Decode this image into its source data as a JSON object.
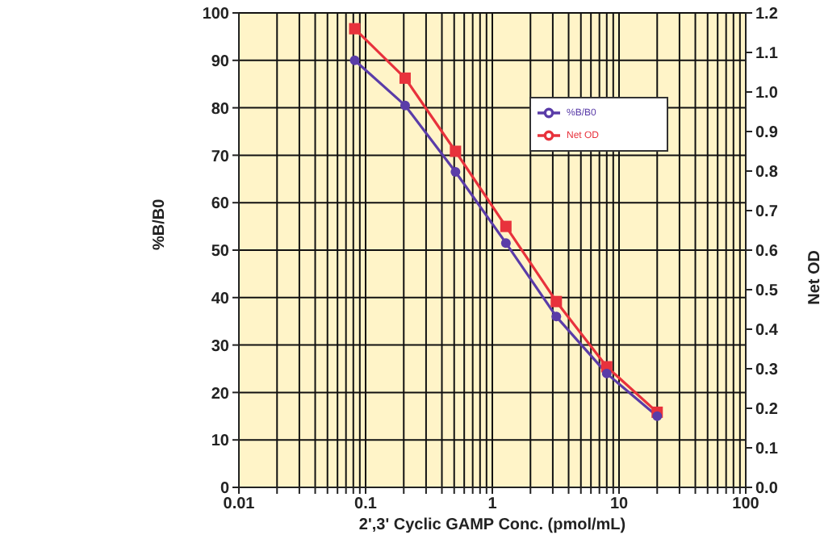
{
  "chart_data": {
    "type": "line",
    "xlabel": "2',3' Cyclic GAMP Conc. (pmol/mL)",
    "ylabel": "%B/B0",
    "y2label": "Net OD",
    "x": [
      0.082,
      0.205,
      0.512,
      1.28,
      3.2,
      8,
      20
    ],
    "series": [
      {
        "name": "%B/B0",
        "color": "#5a3ca8",
        "marker": "circle",
        "values": [
          90,
          80.5,
          66.5,
          51.5,
          36,
          24,
          15
        ]
      },
      {
        "name": "Net OD",
        "color": "#e8323c",
        "marker": "square",
        "axis": "y2",
        "values": [
          1.16,
          1.035,
          0.85,
          0.66,
          0.47,
          0.305,
          0.19
        ]
      }
    ],
    "log": "x",
    "grid": true,
    "legend": "top right",
    "line_style": "solid",
    "xlim": [
      0.01,
      100
    ],
    "xticks": [
      0.01,
      {
        "value": 0.02,
        "label": null
      },
      {
        "value": 0.03,
        "label": null
      },
      {
        "value": 0.04,
        "label": null
      },
      {
        "value": 0.05,
        "label": null
      },
      {
        "value": 0.06,
        "label": null
      },
      {
        "value": 0.07,
        "label": null
      },
      {
        "value": 0.08,
        "label": null
      },
      {
        "value": 0.09,
        "label": null
      },
      0.1,
      {
        "value": 0.2,
        "label": null
      },
      {
        "value": 0.3,
        "label": null
      },
      {
        "value": 0.4,
        "label": null
      },
      {
        "value": 0.5,
        "label": null
      },
      {
        "value": 0.6,
        "label": null
      },
      {
        "value": 0.7,
        "label": null
      },
      {
        "value": 0.8,
        "label": null
      },
      {
        "value": 0.9,
        "label": null
      },
      1,
      {
        "value": 2,
        "label": null
      },
      {
        "value": 3,
        "label": null
      },
      {
        "value": 4,
        "label": null
      },
      {
        "value": 5,
        "label": null
      },
      {
        "value": 6,
        "label": null
      },
      {
        "value": 7,
        "label": null
      },
      {
        "value": 8,
        "label": null
      },
      {
        "value": 9,
        "label": null
      },
      10,
      {
        "value": 20,
        "label": null
      },
      {
        "value": 30,
        "label": null
      },
      {
        "value": 40,
        "label": null
      },
      {
        "value": 50,
        "label": null
      },
      {
        "value": 60,
        "label": null
      },
      {
        "value": 70,
        "label": null
      },
      {
        "value": 80,
        "label": null
      },
      {
        "value": 90,
        "label": null
      },
      100
    ],
    "ylim": [
      0,
      100
    ],
    "yticks": [
      0,
      10,
      20,
      30,
      40,
      50,
      60,
      70,
      80,
      90,
      100
    ],
    "y2lim": [
      0,
      1.2
    ],
    "y2ticks": [
      {
        "value": 0,
        "label": "0.0"
      },
      0.1,
      0.2,
      0.3,
      0.4,
      0.5,
      0.6,
      0.7,
      0.8,
      0.9,
      {
        "value": 1,
        "label": "1.0"
      },
      1.1,
      1.2
    ]
  }
}
